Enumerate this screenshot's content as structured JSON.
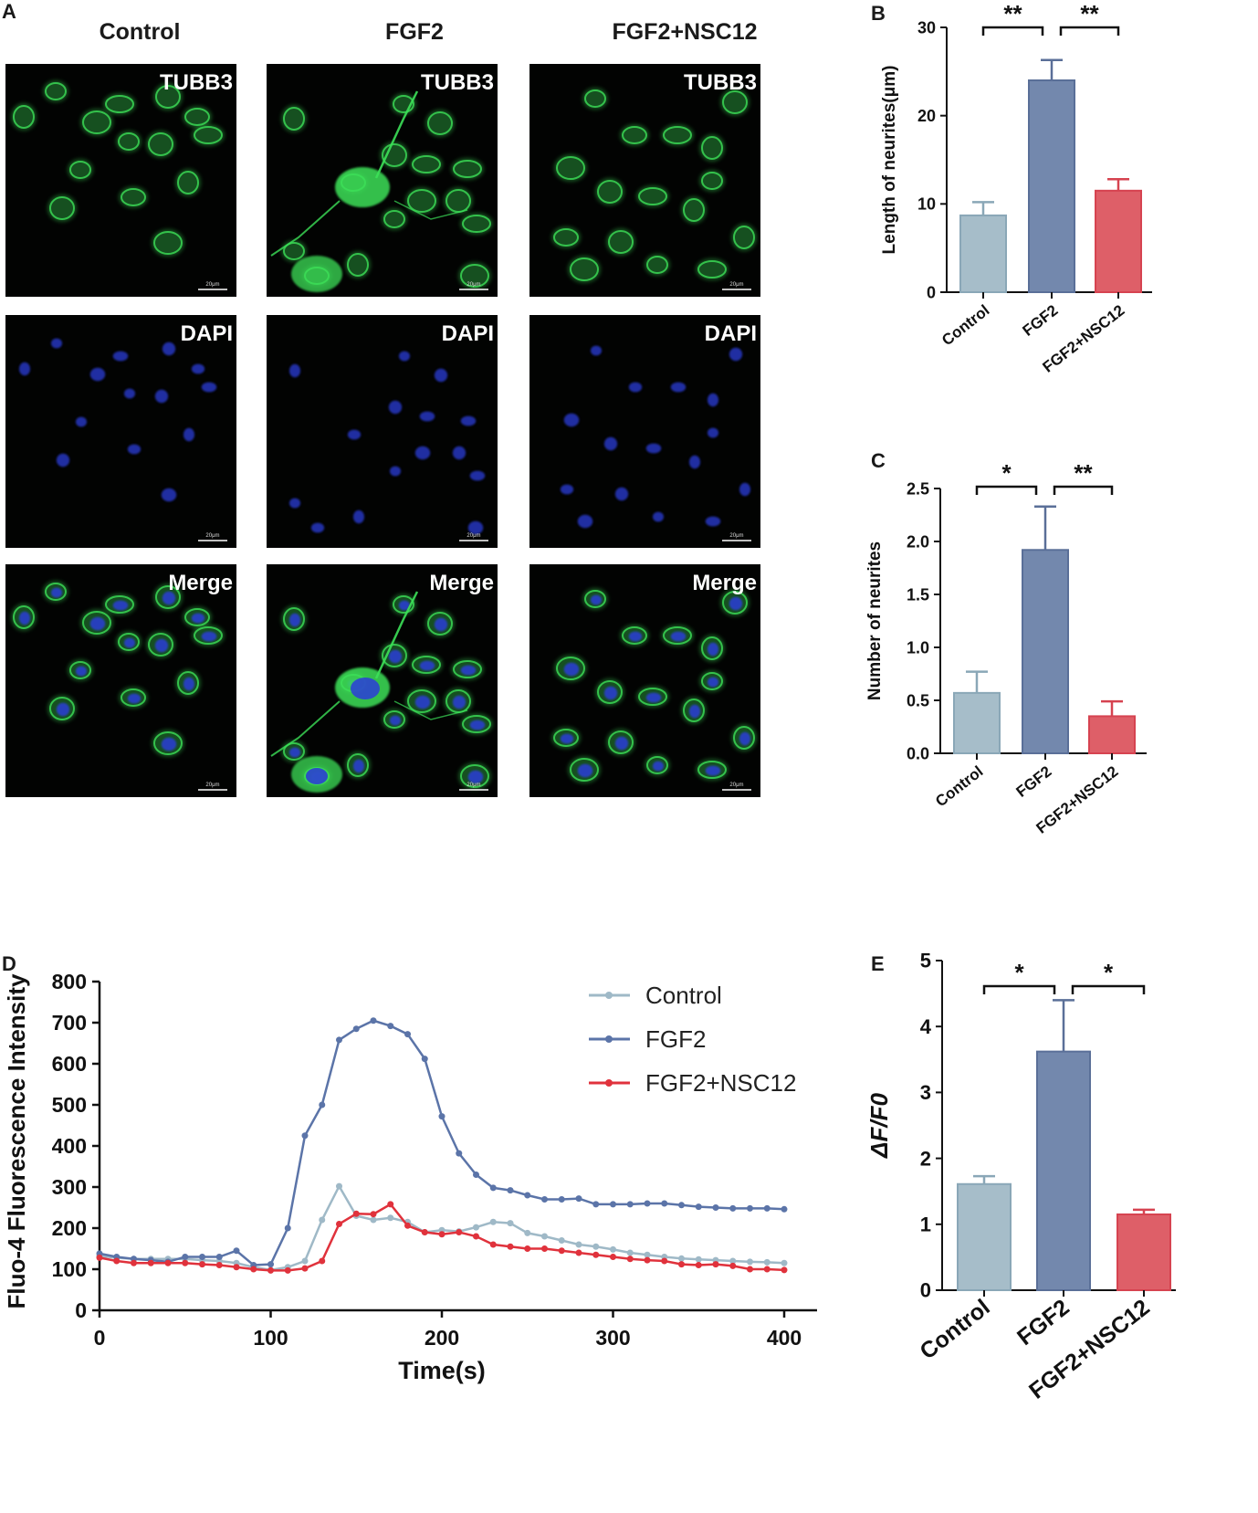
{
  "panels": {
    "A": {
      "letter": "A",
      "columns": [
        "Control",
        "FGF2",
        "FGF2+NSC12"
      ],
      "rows": [
        "TUBB3",
        "DAPI",
        "Merge"
      ],
      "scale_bar": "20μm"
    },
    "B": {
      "letter": "B"
    },
    "C": {
      "letter": "C"
    },
    "D": {
      "letter": "D"
    },
    "E": {
      "letter": "E"
    }
  },
  "colors": {
    "control": "#a6bdc9",
    "control_line": "#9fb9c7",
    "fgf2": "#7388ad",
    "fgf2_line": "#5b74a8",
    "nsc12": "#de5f68",
    "nsc12_line": "#e0323c",
    "tubb3": "#3ce058",
    "dapi": "#2c3cd8"
  },
  "chart_data": [
    {
      "id": "B",
      "type": "bar",
      "categories": [
        "Control",
        "FGF2",
        "FGF2+NSC12"
      ],
      "values": [
        8.7,
        24.0,
        11.5
      ],
      "errors": [
        1.5,
        2.3,
        1.3
      ],
      "ylabel": "Length of neurites(μm)",
      "ylim": [
        0,
        30
      ],
      "yticks": [
        "0",
        "10",
        "20",
        "30"
      ],
      "significance": [
        {
          "from": 0,
          "to": 1,
          "label": "**"
        },
        {
          "from": 1,
          "to": 2,
          "label": "**"
        }
      ]
    },
    {
      "id": "C",
      "type": "bar",
      "categories": [
        "Control",
        "FGF2",
        "FGF2+NSC12"
      ],
      "values": [
        0.57,
        1.92,
        0.35
      ],
      "errors": [
        0.2,
        0.41,
        0.14
      ],
      "ylabel": "Number of neurites",
      "ylim": [
        0,
        2.5
      ],
      "yticks": [
        "0.0",
        "0.5",
        "1.0",
        "1.5",
        "2.0",
        "2.5"
      ],
      "significance": [
        {
          "from": 0,
          "to": 1,
          "label": "*"
        },
        {
          "from": 1,
          "to": 2,
          "label": "**"
        }
      ]
    },
    {
      "id": "D",
      "type": "line",
      "xlabel": "Time(s)",
      "ylabel": "Fluo-4 Fluorescence Intensity",
      "xlim": [
        0,
        400
      ],
      "ylim": [
        0,
        800
      ],
      "xticks": [
        "0",
        "100",
        "200",
        "300",
        "400"
      ],
      "yticks": [
        "0",
        "100",
        "200",
        "300",
        "400",
        "500",
        "600",
        "700",
        "800"
      ],
      "legend_position": "top-right",
      "x": [
        0,
        10,
        20,
        30,
        40,
        50,
        60,
        70,
        80,
        90,
        100,
        110,
        120,
        130,
        140,
        150,
        160,
        170,
        180,
        190,
        200,
        210,
        220,
        230,
        240,
        250,
        260,
        270,
        280,
        290,
        300,
        310,
        320,
        330,
        340,
        350,
        360,
        370,
        380,
        390,
        400
      ],
      "series": [
        {
          "name": "Control",
          "values": [
            132,
            128,
            125,
            125,
            125,
            125,
            122,
            120,
            115,
            105,
            98,
            105,
            120,
            220,
            302,
            230,
            220,
            225,
            215,
            190,
            195,
            192,
            202,
            215,
            212,
            188,
            180,
            170,
            160,
            155,
            148,
            140,
            135,
            130,
            126,
            124,
            122,
            120,
            118,
            117,
            115
          ]
        },
        {
          "name": "FGF2",
          "values": [
            138,
            130,
            125,
            122,
            118,
            130,
            130,
            130,
            145,
            110,
            112,
            200,
            425,
            500,
            658,
            685,
            705,
            692,
            672,
            612,
            472,
            382,
            330,
            298,
            292,
            280,
            270,
            270,
            272,
            258,
            258,
            258,
            260,
            260,
            256,
            252,
            250,
            248,
            248,
            248,
            246
          ]
        },
        {
          "name": "FGF2+NSC12",
          "values": [
            128,
            120,
            115,
            115,
            115,
            115,
            112,
            110,
            105,
            100,
            97,
            97,
            102,
            120,
            210,
            235,
            234,
            258,
            206,
            190,
            185,
            190,
            180,
            160,
            155,
            150,
            150,
            145,
            140,
            135,
            130,
            125,
            122,
            120,
            112,
            110,
            112,
            108,
            100,
            100,
            98
          ]
        }
      ]
    },
    {
      "id": "E",
      "type": "bar",
      "categories": [
        "Control",
        "FGF2",
        "FGF2+NSC12"
      ],
      "values": [
        1.61,
        3.62,
        1.15
      ],
      "errors": [
        0.12,
        0.78,
        0.07
      ],
      "ylabel": "ΔF/F0",
      "ylim": [
        0,
        5
      ],
      "yticks": [
        "0",
        "1",
        "2",
        "3",
        "4",
        "5"
      ],
      "significance": [
        {
          "from": 0,
          "to": 1,
          "label": "*"
        },
        {
          "from": 1,
          "to": 2,
          "label": "*"
        }
      ]
    }
  ]
}
